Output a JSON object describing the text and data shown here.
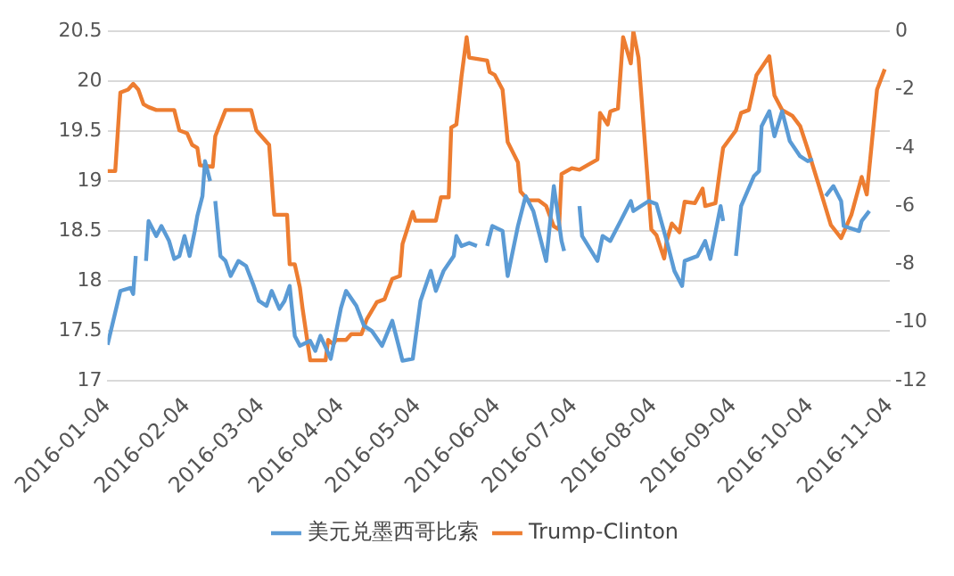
{
  "chart_data": {
    "type": "line",
    "legend": "bottom",
    "grid": "y",
    "marker": "none",
    "line_style": "solid",
    "xlim": [
      "2016-01-04",
      "2016-11-04"
    ],
    "xticks": [
      "2016-01-04",
      "2016-02-04",
      "2016-03-04",
      "2016-04-04",
      "2016-05-04",
      "2016-06-04",
      "2016-07-04",
      "2016-08-04",
      "2016-09-04",
      "2016-10-04",
      "2016-11-04"
    ],
    "ylim": [
      17,
      20.5
    ],
    "yticks": [
      17,
      17.5,
      18,
      18.5,
      19,
      19.5,
      20,
      20.5
    ],
    "y2lim": [
      -12,
      0
    ],
    "y2ticks": [
      -12,
      -10,
      -8,
      -6,
      -4,
      -2,
      0
    ],
    "series": [
      {
        "name": "美元兑墨西哥比索",
        "color": "#5b9bd5",
        "x": [
          "2016-01-04",
          "2016-01-09",
          "2016-01-13",
          "2016-01-14",
          "2016-01-15",
          "2016-01-17",
          "2016-01-19",
          "2016-01-20",
          "2016-01-23",
          "2016-01-25",
          "2016-01-28",
          "2016-01-30",
          "2016-02-01",
          "2016-02-03",
          "2016-02-05",
          "2016-02-07",
          "2016-02-08",
          "2016-02-10",
          "2016-02-11",
          "2016-02-13",
          "2016-02-14",
          "2016-02-15",
          "2016-02-17",
          "2016-02-19",
          "2016-02-21",
          "2016-02-24",
          "2016-02-27",
          "2016-03-01",
          "2016-03-03",
          "2016-03-06",
          "2016-03-08",
          "2016-03-11",
          "2016-03-13",
          "2016-03-15",
          "2016-03-17",
          "2016-03-19",
          "2016-03-23",
          "2016-03-25",
          "2016-03-27",
          "2016-03-31",
          "2016-04-04",
          "2016-04-06",
          "2016-04-10",
          "2016-04-13",
          "2016-04-16",
          "2016-04-20",
          "2016-04-24",
          "2016-04-28",
          "2016-05-02",
          "2016-05-05",
          "2016-05-09",
          "2016-05-11",
          "2016-05-14",
          "2016-05-18",
          "2016-05-19",
          "2016-05-21",
          "2016-05-24",
          "2016-05-27",
          "2016-05-29",
          "2016-05-31",
          "2016-06-02",
          "2016-06-06",
          "2016-06-08",
          "2016-06-12",
          "2016-06-15",
          "2016-06-18",
          "2016-06-23",
          "2016-06-26",
          "2016-06-29",
          "2016-06-30",
          "2016-07-03",
          "2016-07-06",
          "2016-07-07",
          "2016-07-13",
          "2016-07-15",
          "2016-07-18",
          "2016-07-22",
          "2016-07-26",
          "2016-07-27",
          "2016-08-02",
          "2016-08-05",
          "2016-08-09",
          "2016-08-12",
          "2016-08-15",
          "2016-08-16",
          "2016-08-21",
          "2016-08-24",
          "2016-08-26",
          "2016-08-30",
          "2016-08-31",
          "2016-09-03",
          "2016-09-05",
          "2016-09-07",
          "2016-09-12",
          "2016-09-14",
          "2016-09-15",
          "2016-09-18",
          "2016-09-20",
          "2016-09-23",
          "2016-09-26",
          "2016-09-30",
          "2016-10-03",
          "2016-10-05",
          "2016-10-07",
          "2016-10-10",
          "2016-10-13",
          "2016-10-16",
          "2016-10-17",
          "2016-10-23",
          "2016-10-24",
          "2016-10-27"
        ],
        "values": [
          17.36,
          17.9,
          17.93,
          17.87,
          18.25,
          null,
          18.2,
          18.6,
          18.45,
          18.55,
          18.4,
          18.22,
          18.25,
          18.45,
          18.25,
          18.5,
          18.65,
          18.85,
          19.2,
          19.0,
          null,
          18.8,
          18.25,
          18.2,
          18.05,
          18.2,
          18.15,
          17.95,
          17.8,
          17.75,
          17.9,
          17.72,
          17.8,
          17.95,
          17.45,
          17.35,
          17.4,
          17.3,
          17.45,
          17.22,
          17.73,
          17.9,
          17.75,
          17.55,
          17.5,
          17.35,
          17.6,
          17.2,
          17.22,
          17.8,
          18.1,
          17.9,
          18.1,
          18.25,
          18.45,
          18.35,
          18.38,
          18.35,
          null,
          18.35,
          18.55,
          18.5,
          18.05,
          18.55,
          18.85,
          18.7,
          18.2,
          18.95,
          18.4,
          18.3,
          null,
          18.75,
          18.45,
          18.2,
          18.45,
          18.4,
          18.6,
          18.8,
          18.7,
          18.8,
          18.77,
          18.4,
          18.1,
          17.95,
          18.2,
          18.25,
          18.4,
          18.22,
          18.75,
          18.6,
          null,
          18.25,
          18.75,
          19.05,
          19.1,
          19.55,
          19.7,
          19.45,
          19.7,
          19.4,
          19.25,
          19.2,
          19.22,
          null,
          18.85,
          18.95,
          18.8,
          18.55,
          18.5,
          18.6,
          18.7
        ]
      },
      {
        "name": "Trump-Clinton",
        "color": "#ed7d31",
        "axis": "y2",
        "x": [
          "2016-01-04",
          "2016-01-07",
          "2016-01-09",
          "2016-01-12",
          "2016-01-14",
          "2016-01-16",
          "2016-01-18",
          "2016-01-20",
          "2016-01-23",
          "2016-01-30",
          "2016-02-01",
          "2016-02-04",
          "2016-02-06",
          "2016-02-08",
          "2016-02-09",
          "2016-02-14",
          "2016-02-15",
          "2016-02-19",
          "2016-02-29",
          "2016-03-02",
          "2016-03-04",
          "2016-03-07",
          "2016-03-09",
          "2016-03-14",
          "2016-03-15",
          "2016-03-17",
          "2016-03-19",
          "2016-03-20",
          "2016-03-23",
          "2016-03-29",
          "2016-03-30",
          "2016-04-01",
          "2016-04-02",
          "2016-04-06",
          "2016-04-08",
          "2016-04-12",
          "2016-04-14",
          "2016-04-18",
          "2016-04-21",
          "2016-04-24",
          "2016-04-27",
          "2016-04-28",
          "2016-05-02",
          "2016-05-03",
          "2016-05-11",
          "2016-05-13",
          "2016-05-16",
          "2016-05-17",
          "2016-05-19",
          "2016-05-21",
          "2016-05-23",
          "2016-05-24",
          "2016-05-31",
          "2016-06-01",
          "2016-06-03",
          "2016-06-06",
          "2016-06-08",
          "2016-06-12",
          "2016-06-13",
          "2016-06-16",
          "2016-06-20",
          "2016-06-23",
          "2016-06-26",
          "2016-06-28",
          "2016-06-29",
          "2016-07-03",
          "2016-07-06",
          "2016-07-09",
          "2016-07-13",
          "2016-07-14",
          "2016-07-17",
          "2016-07-18",
          "2016-07-21",
          "2016-07-23",
          "2016-07-26",
          "2016-07-27",
          "2016-07-29",
          "2016-07-31",
          "2016-08-03",
          "2016-08-05",
          "2016-08-08",
          "2016-08-09",
          "2016-08-11",
          "2016-08-14",
          "2016-08-16",
          "2016-08-20",
          "2016-08-23",
          "2016-08-24",
          "2016-08-28",
          "2016-08-30",
          "2016-08-31",
          "2016-09-05",
          "2016-09-07",
          "2016-09-10",
          "2016-09-13",
          "2016-09-18",
          "2016-09-20",
          "2016-09-23",
          "2016-09-27",
          "2016-09-30",
          "2016-10-03",
          "2016-10-07",
          "2016-10-12",
          "2016-10-16",
          "2016-10-20",
          "2016-10-24",
          "2016-10-26",
          "2016-10-28",
          "2016-10-30",
          "2016-11-02"
        ],
        "values": [
          -4.8,
          -4.8,
          -2.1,
          -2.0,
          -1.8,
          -2.0,
          -2.5,
          -2.6,
          -2.7,
          -2.7,
          -3.4,
          -3.5,
          -3.9,
          -4.0,
          -4.6,
          -4.65,
          -3.6,
          -2.7,
          -2.7,
          -3.4,
          -3.6,
          -3.9,
          -6.3,
          -6.3,
          -8.0,
          -8.0,
          -8.8,
          -9.5,
          -11.3,
          -11.3,
          -10.6,
          -10.75,
          -10.6,
          -10.6,
          -10.4,
          -10.4,
          -9.9,
          -9.3,
          -9.2,
          -8.5,
          -8.4,
          -7.3,
          -6.2,
          -6.5,
          -6.5,
          -5.7,
          -5.7,
          -3.3,
          -3.2,
          -1.55,
          -0.2,
          -0.9,
          -1.0,
          -1.4,
          -1.5,
          -2.0,
          -3.8,
          -4.5,
          -5.5,
          -5.8,
          -5.8,
          -6.0,
          -6.7,
          -6.8,
          -4.9,
          -4.7,
          -4.75,
          -4.6,
          -4.4,
          -2.8,
          -3.2,
          -2.75,
          -2.65,
          -0.2,
          -1.1,
          0,
          -0.9,
          -3.25,
          -6.8,
          -7.0,
          -7.8,
          -7.2,
          -6.6,
          -6.9,
          -5.85,
          -5.9,
          -5.4,
          -6.0,
          -5.9,
          -4.6,
          -4.0,
          -3.4,
          -2.8,
          -2.7,
          -1.5,
          -0.85,
          -2.2,
          -2.7,
          -2.9,
          -3.25,
          -4.05,
          -5.2,
          -6.65,
          -7.1,
          -6.3,
          -5.0,
          -5.6,
          -3.8,
          -2.0,
          -1.3
        ]
      }
    ]
  }
}
